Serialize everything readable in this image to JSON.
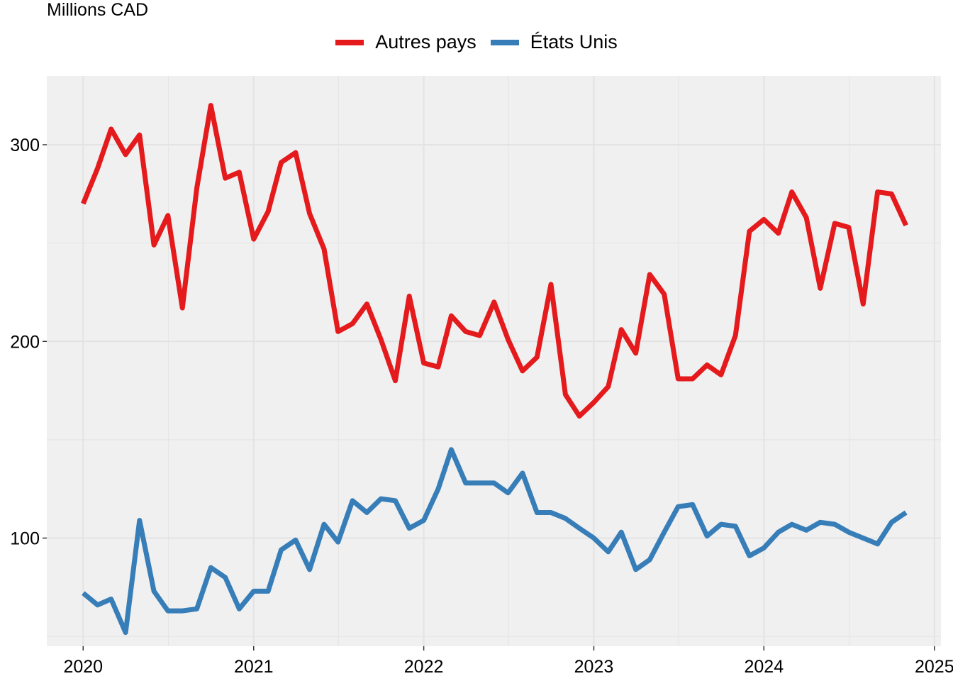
{
  "chart_data": {
    "type": "line",
    "ylabel": "Millions CAD",
    "xlabel": "",
    "title": "",
    "x_ticks": [
      "2020",
      "2021",
      "2022",
      "2023",
      "2024",
      "2025"
    ],
    "y_ticks": [
      "100",
      "200",
      "300"
    ],
    "xlim": [
      "2019-10-15",
      "2025-01-15"
    ],
    "ylim": [
      45,
      335
    ],
    "grid": true,
    "legend_position": "top",
    "series": [
      {
        "name": "Autres pays",
        "color": "#e41a1c",
        "values": [
          [
            "2020-01-01",
            270
          ],
          [
            "2020-02-01",
            288
          ],
          [
            "2020-03-01",
            308
          ],
          [
            "2020-04-01",
            295
          ],
          [
            "2020-05-01",
            305
          ],
          [
            "2020-06-01",
            249
          ],
          [
            "2020-07-01",
            264
          ],
          [
            "2020-08-01",
            217
          ],
          [
            "2020-09-01",
            278
          ],
          [
            "2020-10-01",
            320
          ],
          [
            "2020-11-01",
            283
          ],
          [
            "2020-12-01",
            286
          ],
          [
            "2021-01-01",
            252
          ],
          [
            "2021-02-01",
            266
          ],
          [
            "2021-03-01",
            291
          ],
          [
            "2021-04-01",
            296
          ],
          [
            "2021-05-01",
            265
          ],
          [
            "2021-06-01",
            247
          ],
          [
            "2021-07-01",
            205
          ],
          [
            "2021-08-01",
            209
          ],
          [
            "2021-09-01",
            219
          ],
          [
            "2021-10-01",
            201
          ],
          [
            "2021-11-01",
            180
          ],
          [
            "2021-12-01",
            223
          ],
          [
            "2022-01-01",
            189
          ],
          [
            "2022-02-01",
            187
          ],
          [
            "2022-03-01",
            213
          ],
          [
            "2022-04-01",
            205
          ],
          [
            "2022-05-01",
            203
          ],
          [
            "2022-06-01",
            220
          ],
          [
            "2022-07-01",
            201
          ],
          [
            "2022-08-01",
            185
          ],
          [
            "2022-09-01",
            192
          ],
          [
            "2022-10-01",
            229
          ],
          [
            "2022-11-01",
            173
          ],
          [
            "2022-12-01",
            162
          ],
          [
            "2023-01-01",
            169
          ],
          [
            "2023-02-01",
            177
          ],
          [
            "2023-03-01",
            206
          ],
          [
            "2023-04-01",
            194
          ],
          [
            "2023-05-01",
            234
          ],
          [
            "2023-06-01",
            224
          ],
          [
            "2023-07-01",
            181
          ],
          [
            "2023-08-01",
            181
          ],
          [
            "2023-09-01",
            188
          ],
          [
            "2023-10-01",
            183
          ],
          [
            "2023-11-01",
            203
          ],
          [
            "2023-12-01",
            256
          ],
          [
            "2024-01-01",
            262
          ],
          [
            "2024-02-01",
            255
          ],
          [
            "2024-03-01",
            276
          ],
          [
            "2024-04-01",
            263
          ],
          [
            "2024-05-01",
            227
          ],
          [
            "2024-06-01",
            260
          ],
          [
            "2024-07-01",
            258
          ],
          [
            "2024-08-01",
            219
          ],
          [
            "2024-09-01",
            276
          ],
          [
            "2024-10-01",
            275
          ],
          [
            "2024-11-01",
            259
          ]
        ]
      },
      {
        "name": "États Unis",
        "color": "#377eb8",
        "values": [
          [
            "2020-01-01",
            72
          ],
          [
            "2020-02-01",
            66
          ],
          [
            "2020-03-01",
            69
          ],
          [
            "2020-04-01",
            52
          ],
          [
            "2020-05-01",
            109
          ],
          [
            "2020-06-01",
            73
          ],
          [
            "2020-07-01",
            63
          ],
          [
            "2020-08-01",
            63
          ],
          [
            "2020-09-01",
            64
          ],
          [
            "2020-10-01",
            85
          ],
          [
            "2020-11-01",
            80
          ],
          [
            "2020-12-01",
            64
          ],
          [
            "2021-01-01",
            73
          ],
          [
            "2021-02-01",
            73
          ],
          [
            "2021-03-01",
            94
          ],
          [
            "2021-04-01",
            99
          ],
          [
            "2021-05-01",
            84
          ],
          [
            "2021-06-01",
            107
          ],
          [
            "2021-07-01",
            98
          ],
          [
            "2021-08-01",
            119
          ],
          [
            "2021-09-01",
            113
          ],
          [
            "2021-10-01",
            120
          ],
          [
            "2021-11-01",
            119
          ],
          [
            "2021-12-01",
            105
          ],
          [
            "2022-01-01",
            109
          ],
          [
            "2022-02-01",
            125
          ],
          [
            "2022-03-01",
            145
          ],
          [
            "2022-04-01",
            128
          ],
          [
            "2022-05-01",
            128
          ],
          [
            "2022-06-01",
            128
          ],
          [
            "2022-07-01",
            123
          ],
          [
            "2022-08-01",
            133
          ],
          [
            "2022-09-01",
            113
          ],
          [
            "2022-10-01",
            113
          ],
          [
            "2022-11-01",
            110
          ],
          [
            "2022-12-01",
            105
          ],
          [
            "2023-01-01",
            100
          ],
          [
            "2023-02-01",
            93
          ],
          [
            "2023-03-01",
            103
          ],
          [
            "2023-04-01",
            84
          ],
          [
            "2023-05-01",
            89
          ],
          [
            "2023-06-01",
            103
          ],
          [
            "2023-07-01",
            116
          ],
          [
            "2023-08-01",
            117
          ],
          [
            "2023-09-01",
            101
          ],
          [
            "2023-10-01",
            107
          ],
          [
            "2023-11-01",
            106
          ],
          [
            "2023-12-01",
            91
          ],
          [
            "2024-01-01",
            95
          ],
          [
            "2024-02-01",
            103
          ],
          [
            "2024-03-01",
            107
          ],
          [
            "2024-04-01",
            104
          ],
          [
            "2024-05-01",
            108
          ],
          [
            "2024-06-01",
            107
          ],
          [
            "2024-07-01",
            103
          ],
          [
            "2024-08-01",
            100
          ],
          [
            "2024-09-01",
            97
          ],
          [
            "2024-10-01",
            108
          ],
          [
            "2024-11-01",
            113
          ]
        ]
      }
    ]
  }
}
